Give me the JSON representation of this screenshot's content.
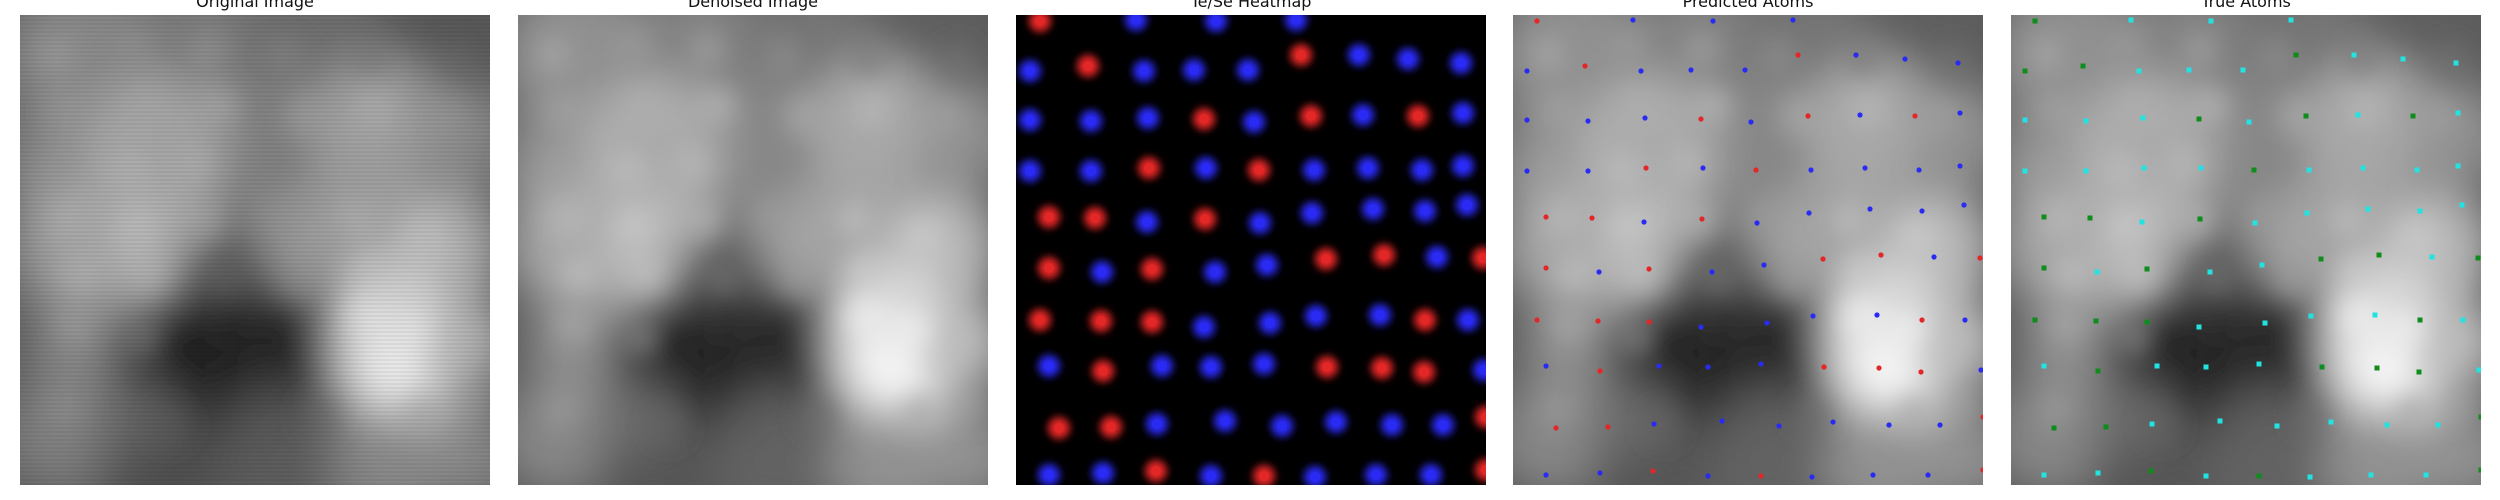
{
  "figure": {
    "panels": [
      {
        "title": "Original Image"
      },
      {
        "title": "Denoised Image"
      },
      {
        "title": "Te/Se Heatmap"
      },
      {
        "title": "Predicted Atoms"
      },
      {
        "title": "True Atoms"
      }
    ]
  },
  "colors": {
    "te": "#e32626",
    "se": "#2a2af5",
    "true_te": "#0e8c1c",
    "true_se": "#22e3e3",
    "background": "#000000"
  }
}
